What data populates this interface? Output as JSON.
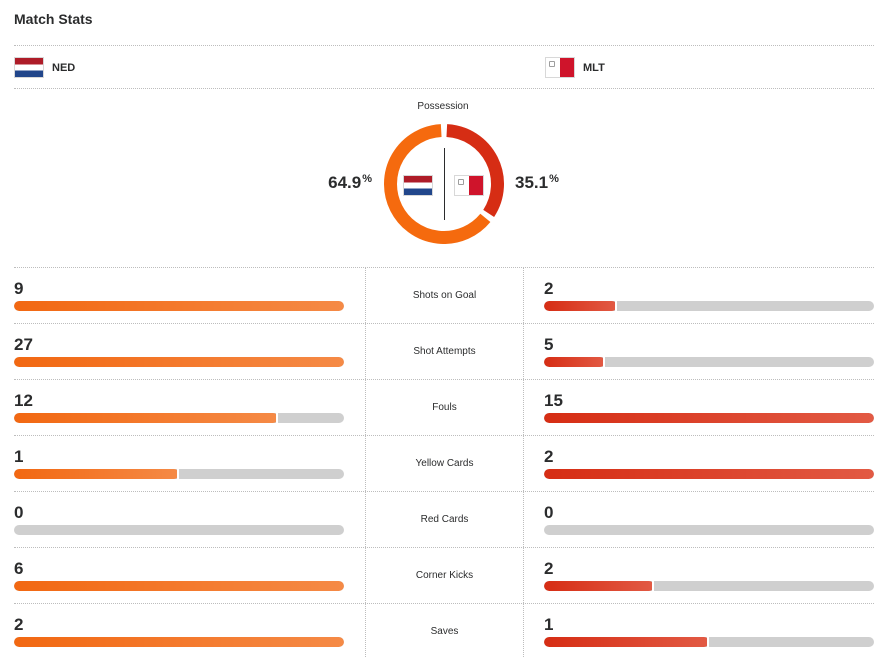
{
  "title": "Match Stats",
  "home": {
    "abbr": "NED",
    "flag_icon": "netherlands-flag-icon",
    "color": "#f26812"
  },
  "away": {
    "abbr": "MLT",
    "flag_icon": "malta-flag-icon",
    "color": "#d62d14"
  },
  "possession": {
    "label": "Possession",
    "home_value": "64.9",
    "away_value": "35.1",
    "unit": "%",
    "home_fraction": 0.649,
    "away_fraction": 0.351
  },
  "stats": [
    {
      "label": "Shots on Goal",
      "home": "9",
      "away": "2",
      "home_fill": 1.0,
      "away_fill": 0.222
    },
    {
      "label": "Shot Attempts",
      "home": "27",
      "away": "5",
      "home_fill": 1.0,
      "away_fill": 0.185
    },
    {
      "label": "Fouls",
      "home": "12",
      "away": "15",
      "home_fill": 0.8,
      "away_fill": 1.0
    },
    {
      "label": "Yellow Cards",
      "home": "1",
      "away": "2",
      "home_fill": 0.5,
      "away_fill": 1.0
    },
    {
      "label": "Red Cards",
      "home": "0",
      "away": "0",
      "home_fill": 0.0,
      "away_fill": 0.0
    },
    {
      "label": "Corner Kicks",
      "home": "6",
      "away": "2",
      "home_fill": 1.0,
      "away_fill": 0.333
    },
    {
      "label": "Saves",
      "home": "2",
      "away": "1",
      "home_fill": 1.0,
      "away_fill": 0.5
    }
  ]
}
